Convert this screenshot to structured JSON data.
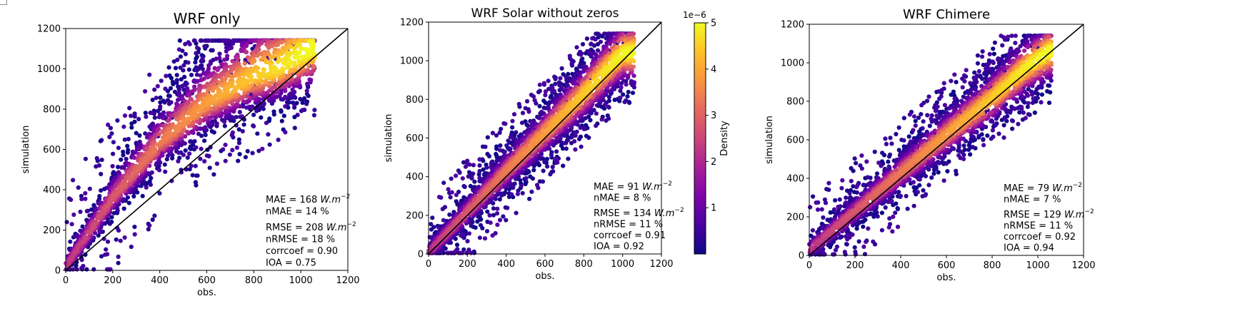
{
  "colorbar": {
    "label": "Density",
    "multiplier": "1e−6",
    "min": 0,
    "max": 5,
    "ticks": [
      "1",
      "2",
      "3",
      "4",
      "5"
    ],
    "colormap": "plasma"
  },
  "chart_data": [
    {
      "type": "scatter",
      "title": "WRF only",
      "xlabel": "obs.",
      "ylabel": "simulation",
      "xlim": [
        0,
        1200
      ],
      "ylim": [
        0,
        1200
      ],
      "xticks": [
        "0",
        "200",
        "400",
        "600",
        "800",
        "1000",
        "1200"
      ],
      "yticks": [
        "0",
        "200",
        "400",
        "600",
        "800",
        "1000",
        "1200"
      ],
      "reference_line": "y = x",
      "point_color": "density (plasma colormap)",
      "stats": [
        {
          "label": "MAE = 168",
          "unit": "W.m",
          "exp": "−2"
        },
        {
          "label": "nMAE = 14 %"
        },
        {
          "label": "RMSE = 208",
          "unit": "W.m",
          "exp": "−2"
        },
        {
          "label": "nRMSE = 18 %"
        },
        {
          "label": "corrcoef = 0.90"
        },
        {
          "label": "IOA = 0.75"
        }
      ],
      "trend_sim_at_obs": [
        [
          0,
          20
        ],
        [
          200,
          360
        ],
        [
          400,
          630
        ],
        [
          600,
          830
        ],
        [
          800,
          960
        ],
        [
          900,
          1000
        ],
        [
          1050,
          1100
        ]
      ]
    },
    {
      "type": "scatter",
      "title": "WRF Solar without zeros",
      "xlabel": "obs.",
      "ylabel": "simulation",
      "xlim": [
        0,
        1200
      ],
      "ylim": [
        0,
        1200
      ],
      "xticks": [
        "0",
        "200",
        "400",
        "600",
        "800",
        "1000",
        "1200"
      ],
      "yticks": [
        "0",
        "200",
        "400",
        "600",
        "800",
        "1000",
        "1200"
      ],
      "reference_line": "y = x",
      "point_color": "density (plasma colormap)",
      "stats": [
        {
          "label": "MAE = 91",
          "unit": "W.m",
          "exp": "−2"
        },
        {
          "label": "nMAE = 8 %"
        },
        {
          "label": "RMSE = 134",
          "unit": "W.m",
          "exp": "−2"
        },
        {
          "label": "nRMSE = 11 %"
        },
        {
          "label": "corrcoef = 0.91"
        },
        {
          "label": "IOA = 0.92"
        }
      ],
      "trend_sim_at_obs": [
        [
          0,
          10
        ],
        [
          200,
          220
        ],
        [
          400,
          430
        ],
        [
          600,
          630
        ],
        [
          800,
          830
        ],
        [
          950,
          990
        ],
        [
          1000,
          1040
        ]
      ]
    },
    {
      "type": "scatter",
      "title": "WRF Chimere",
      "xlabel": "obs.",
      "ylabel": "simulation",
      "xlim": [
        0,
        1200
      ],
      "ylim": [
        0,
        1200
      ],
      "xticks": [
        "0",
        "200",
        "400",
        "600",
        "800",
        "1000",
        "1200"
      ],
      "yticks": [
        "0",
        "200",
        "400",
        "600",
        "800",
        "1000",
        "1200"
      ],
      "reference_line": "y = x",
      "point_color": "density (plasma colormap)",
      "stats": [
        {
          "label": "MAE = 79",
          "unit": "W.m",
          "exp": "−2"
        },
        {
          "label": "nMAE = 7 %"
        },
        {
          "label": "RMSE = 129",
          "unit": "W.m",
          "exp": "−2"
        },
        {
          "label": "nRMSE = 11 %"
        },
        {
          "label": "corrcoef = 0.92"
        },
        {
          "label": "IOA = 0.94"
        }
      ],
      "trend_sim_at_obs": [
        [
          0,
          30
        ],
        [
          200,
          230
        ],
        [
          400,
          430
        ],
        [
          600,
          630
        ],
        [
          800,
          820
        ],
        [
          950,
          980
        ],
        [
          1050,
          1060
        ]
      ]
    }
  ]
}
